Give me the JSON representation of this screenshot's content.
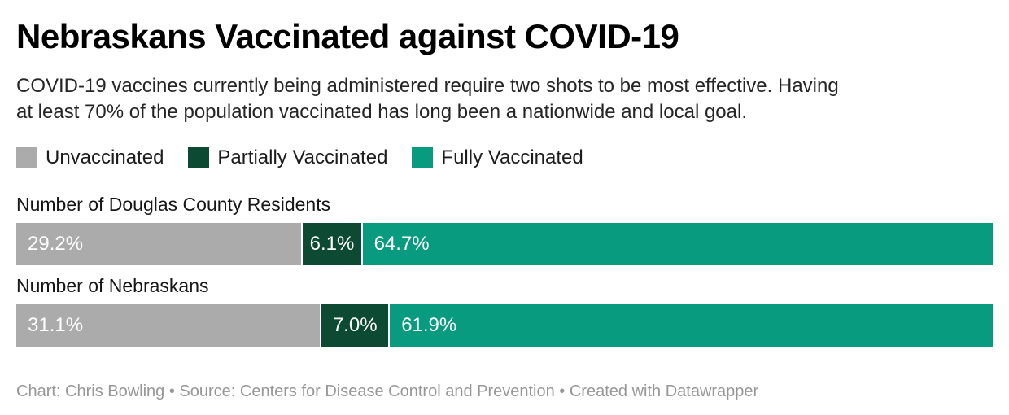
{
  "header": {
    "title": "Nebraskans Vaccinated against COVID-19",
    "description_lines": [
      "COVID-19 vaccines currently being administered require two shots to be most effective. Having",
      "at least 70% of the population vaccinated has long been a nationwide and local goal."
    ]
  },
  "chart_data": {
    "type": "bar",
    "orientation": "horizontal",
    "stacked": true,
    "unit": "percent",
    "xlim": [
      0,
      100
    ],
    "grid": false,
    "legend_position": "top",
    "title": "Nebraskans Vaccinated against COVID-19",
    "categories": [
      "Number of Douglas County Residents",
      "Number of Nebraskans"
    ],
    "series": [
      {
        "name": "Unvaccinated",
        "color": "#ababab",
        "values": [
          29.2,
          31.1
        ],
        "labels": [
          "29.2%",
          "31.1%"
        ]
      },
      {
        "name": "Partially Vaccinated",
        "color": "#0c4a33",
        "values": [
          6.1,
          7.0
        ],
        "labels": [
          "6.1%",
          "7.0%"
        ]
      },
      {
        "name": "Fully Vaccinated",
        "color": "#089b80",
        "values": [
          64.7,
          61.9
        ],
        "labels": [
          "64.7%",
          "61.9%"
        ]
      }
    ]
  },
  "footer": {
    "text": "Chart: Chris Bowling • Source: Centers for Disease Control and Prevention • Created with Datawrapper"
  }
}
